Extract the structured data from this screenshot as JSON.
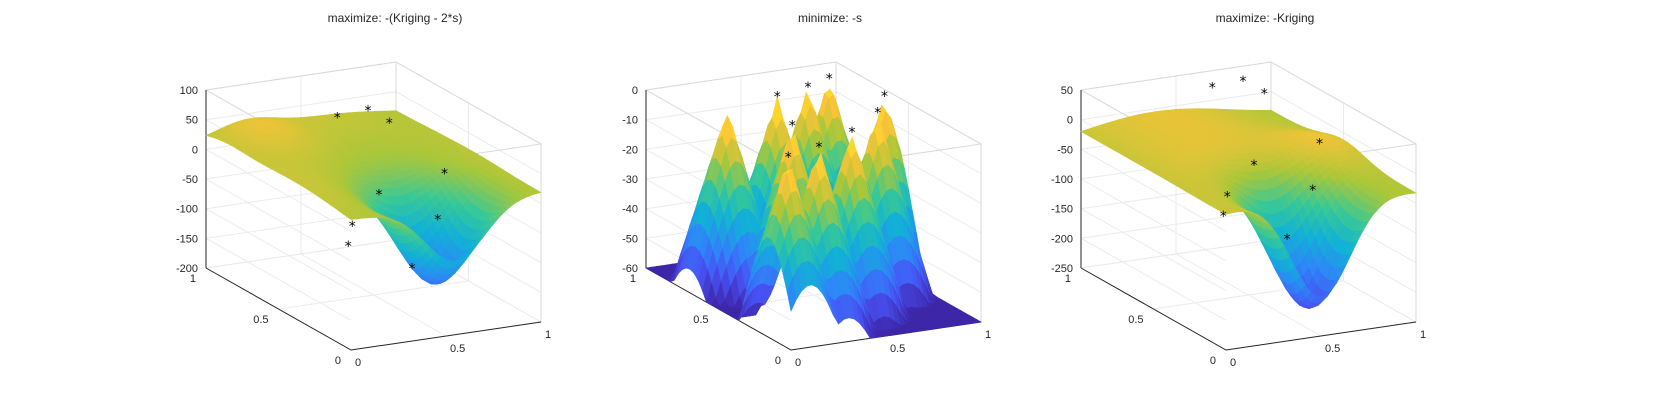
{
  "chart_data": [
    {
      "type": "surface",
      "title": "maximize: -(Kriging - 2*s)",
      "zlim": [
        -200,
        100
      ],
      "z_ticks": [
        "100",
        "50",
        "0",
        "-50",
        "-100",
        "-150",
        "-200"
      ],
      "x_ticks": [
        "0",
        "0.5",
        "1"
      ],
      "y_ticks": [
        "0",
        "0.5",
        "1"
      ],
      "colormap": "parula",
      "samples": [
        {
          "x": 0.1,
          "y": 0.15,
          "z": -50
        },
        {
          "x": 0.35,
          "y": 0.45,
          "z": -70
        },
        {
          "x": 0.55,
          "y": 0.3,
          "z": -130
        },
        {
          "x": 0.8,
          "y": 0.45,
          "z": -80
        },
        {
          "x": 0.3,
          "y": 0.2,
          "z": 20
        },
        {
          "x": 0.5,
          "y": 0.75,
          "z": 65
        },
        {
          "x": 0.85,
          "y": 0.85,
          "z": 25
        },
        {
          "x": 0.95,
          "y": 0.6,
          "z": -30
        },
        {
          "x": 0.7,
          "y": 0.8,
          "z": 60
        }
      ]
    },
    {
      "type": "surface",
      "title": "minimize: -s",
      "zlim": [
        -60,
        0
      ],
      "z_ticks": [
        "0",
        "-10",
        "-20",
        "-30",
        "-40",
        "-50",
        "-60"
      ],
      "x_ticks": [
        "0",
        "0.5",
        "1"
      ],
      "y_ticks": [
        "0",
        "0.5",
        "1"
      ],
      "colormap": "parula",
      "samples": [
        {
          "x": 0.1,
          "y": 0.15,
          "z": 0
        },
        {
          "x": 0.35,
          "y": 0.45,
          "z": 0
        },
        {
          "x": 0.55,
          "y": 0.3,
          "z": 0
        },
        {
          "x": 0.8,
          "y": 0.45,
          "z": 0
        },
        {
          "x": 0.3,
          "y": 0.2,
          "z": 0
        },
        {
          "x": 0.5,
          "y": 0.75,
          "z": 0
        },
        {
          "x": 0.85,
          "y": 0.85,
          "z": 0
        },
        {
          "x": 0.95,
          "y": 0.6,
          "z": 0
        },
        {
          "x": 0.7,
          "y": 0.8,
          "z": 0
        }
      ]
    },
    {
      "type": "surface",
      "title": "maximize: -Kriging",
      "zlim": [
        -250,
        50
      ],
      "z_ticks": [
        "50",
        "0",
        "-50",
        "-100",
        "-150",
        "-200",
        "-250"
      ],
      "x_ticks": [
        "0",
        "0.5",
        "1"
      ],
      "y_ticks": [
        "0",
        "0.5",
        "1"
      ],
      "colormap": "parula",
      "samples": [
        {
          "x": 0.1,
          "y": 0.15,
          "z": -50
        },
        {
          "x": 0.35,
          "y": 0.45,
          "z": -70
        },
        {
          "x": 0.55,
          "y": 0.3,
          "z": -130
        },
        {
          "x": 0.8,
          "y": 0.45,
          "z": -80
        },
        {
          "x": 0.3,
          "y": 0.2,
          "z": 20
        },
        {
          "x": 0.5,
          "y": 0.75,
          "z": 65
        },
        {
          "x": 0.85,
          "y": 0.85,
          "z": 25
        },
        {
          "x": 0.95,
          "y": 0.6,
          "z": -30
        },
        {
          "x": 0.7,
          "y": 0.8,
          "z": 60
        }
      ]
    }
  ]
}
